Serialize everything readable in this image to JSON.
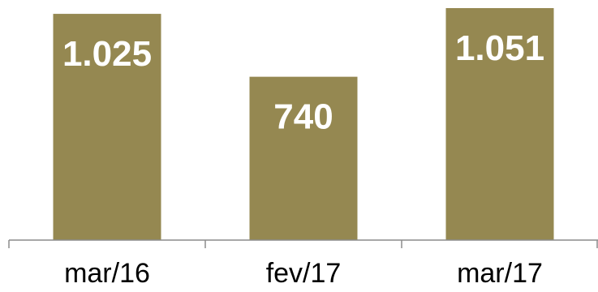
{
  "chart_data": {
    "type": "bar",
    "categories": [
      "mar/16",
      "fev/17",
      "mar/17"
    ],
    "values": [
      1025,
      740,
      1051
    ],
    "value_labels": [
      "1.025",
      "740",
      "1.051"
    ],
    "ylim": [
      0,
      1051
    ],
    "grid": false,
    "legend": "none",
    "colors": {
      "bar": "#958851",
      "axis": "#8c8c8c",
      "value_label": "#ffffff",
      "tick_label": "#000000"
    }
  }
}
